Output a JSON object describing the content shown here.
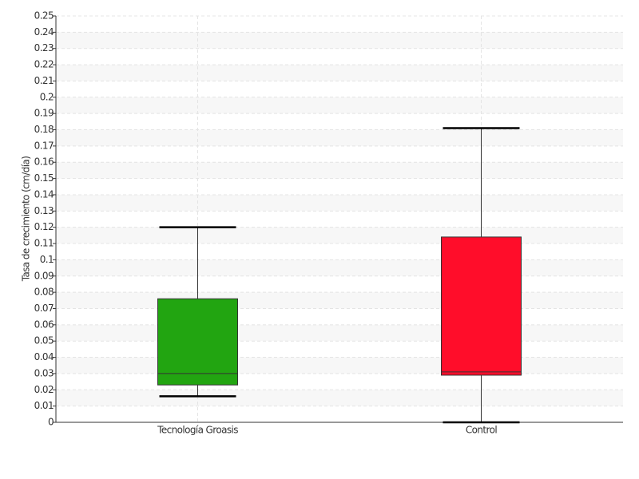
{
  "chart_data": {
    "type": "box",
    "y_label": "Tasa de crecimiento (cm/día)",
    "categories": [
      "Tecnología Groasis",
      "Control"
    ],
    "boxes": [
      {
        "min": 0.016,
        "q1": 0.023,
        "median": 0.03,
        "q3": 0.076,
        "max": 0.12
      },
      {
        "min": 0,
        "q1": 0.029,
        "median": 0.031,
        "q3": 0.114,
        "max": 0.181
      }
    ],
    "colors": [
      "#22a511",
      "#ff0d2a"
    ],
    "ylim": [
      0,
      0.25
    ],
    "yticks": [
      0,
      0.01,
      0.02,
      0.03,
      0.04,
      0.05,
      0.06,
      0.07,
      0.08,
      0.09,
      0.1,
      0.11,
      0.12,
      0.13,
      0.14,
      0.15,
      0.16,
      0.17,
      0.18,
      0.19,
      0.2,
      0.21,
      0.22,
      0.23,
      0.24,
      0.25
    ],
    "grid": true
  }
}
